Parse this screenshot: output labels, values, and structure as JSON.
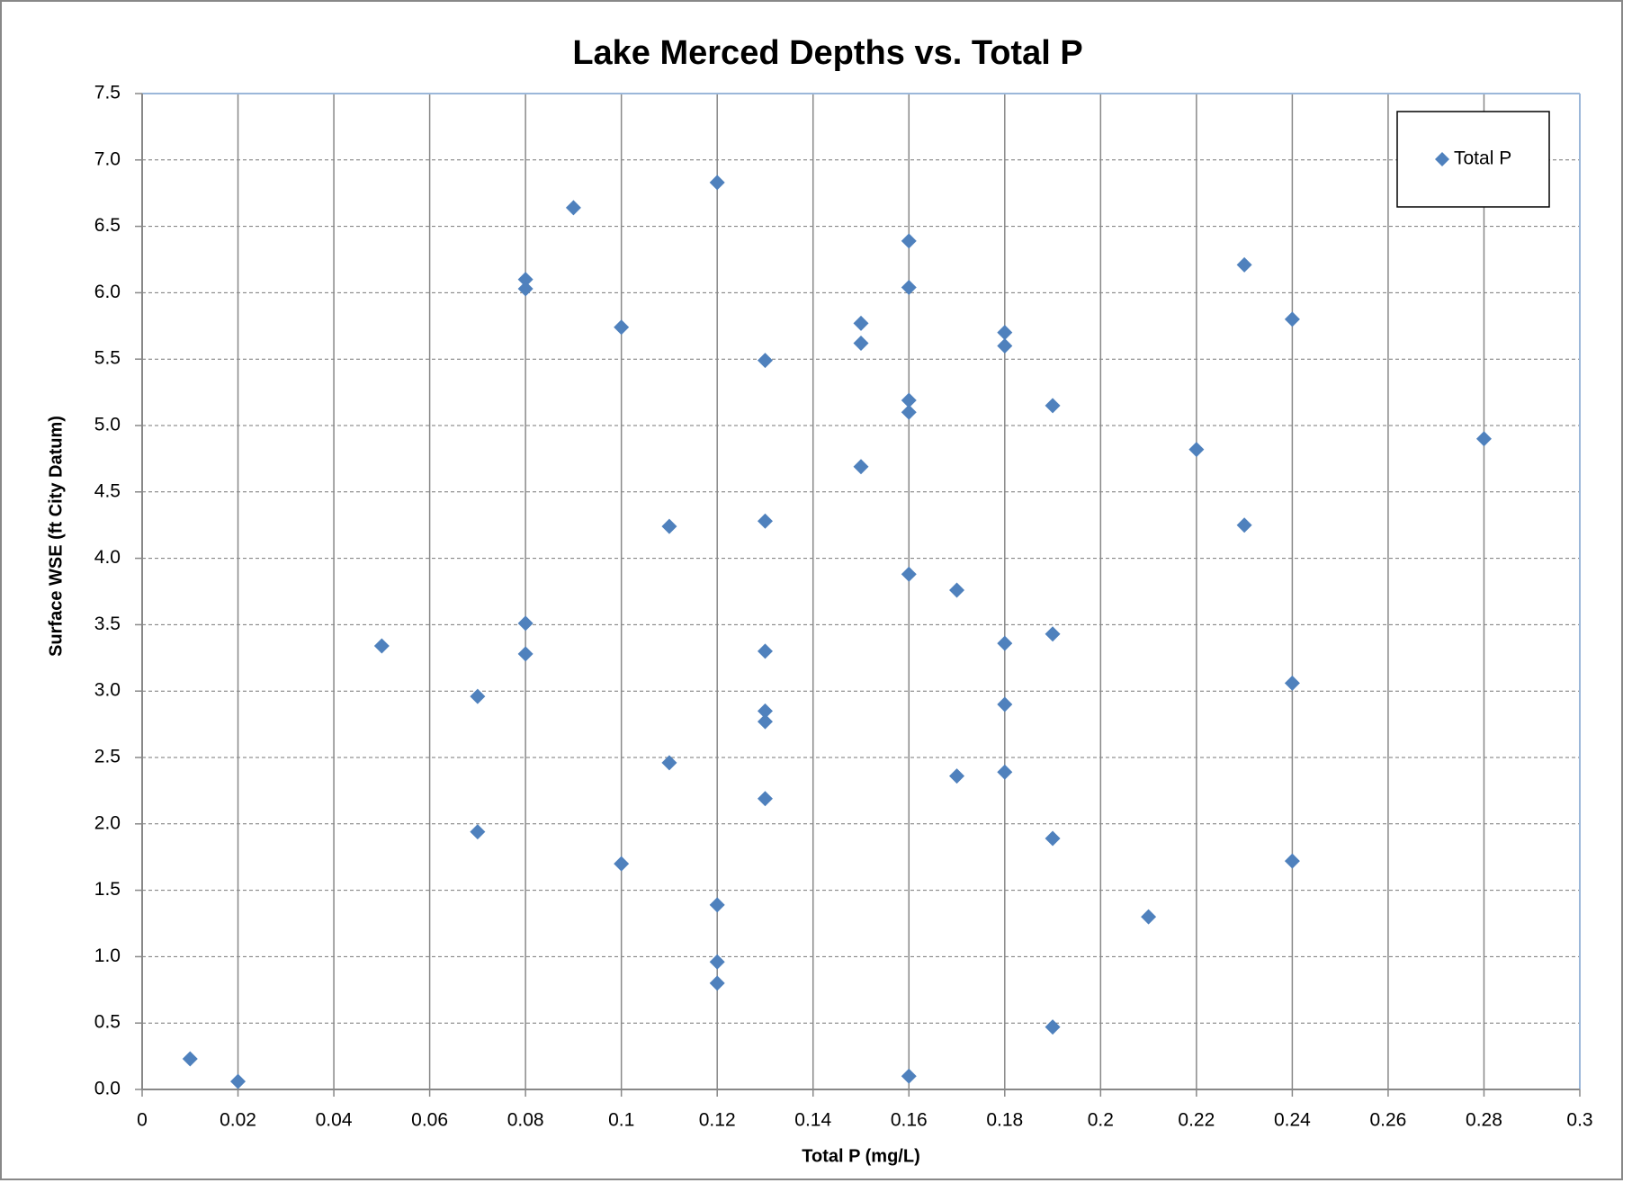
{
  "chart_data": {
    "type": "scatter",
    "title": "Lake Merced Depths vs. Total P",
    "xlabel": "Total P (mg/L)",
    "ylabel": "Surface WSE (ft City Datum)",
    "x": [
      0.01,
      0.02,
      0.05,
      0.07,
      0.07,
      0.08,
      0.08,
      0.08,
      0.08,
      0.09,
      0.1,
      0.1,
      0.11,
      0.11,
      0.12,
      0.12,
      0.12,
      0.12,
      0.13,
      0.13,
      0.13,
      0.13,
      0.13,
      0.13,
      0.15,
      0.15,
      0.15,
      0.16,
      0.16,
      0.16,
      0.16,
      0.16,
      0.16,
      0.17,
      0.17,
      0.18,
      0.18,
      0.18,
      0.18,
      0.18,
      0.19,
      0.19,
      0.19,
      0.19,
      0.21,
      0.22,
      0.23,
      0.23,
      0.24,
      0.24,
      0.24,
      0.28
    ],
    "series": [
      {
        "name": "Total P",
        "color": "#4f81bd",
        "values": [
          0.23,
          0.06,
          3.34,
          2.96,
          1.94,
          6.1,
          6.03,
          3.51,
          3.28,
          6.64,
          5.74,
          1.7,
          4.24,
          2.46,
          6.83,
          1.39,
          0.96,
          0.8,
          5.49,
          4.28,
          3.3,
          2.85,
          2.77,
          2.19,
          5.77,
          5.62,
          4.69,
          6.39,
          6.04,
          5.19,
          5.1,
          3.88,
          0.1,
          3.76,
          2.36,
          5.7,
          5.6,
          3.36,
          2.9,
          2.39,
          5.15,
          3.43,
          1.89,
          0.47,
          1.3,
          4.82,
          6.21,
          4.25,
          5.8,
          3.06,
          1.72,
          4.9
        ]
      }
    ],
    "xlim": [
      0,
      0.3
    ],
    "ylim": [
      0,
      7.5
    ],
    "xticks": [
      0,
      0.02,
      0.04,
      0.06,
      0.08,
      0.1,
      0.12,
      0.14,
      0.16,
      0.18,
      0.2,
      0.22,
      0.24,
      0.26,
      0.28,
      0.3
    ],
    "yticks": [
      {
        "value": 0,
        "label": "0.0"
      },
      0.5,
      {
        "value": 1,
        "label": "1.0"
      },
      1.5,
      {
        "value": 2,
        "label": "2.0"
      },
      2.5,
      {
        "value": 3,
        "label": "3.0"
      },
      3.5,
      {
        "value": 4,
        "label": "4.0"
      },
      4.5,
      {
        "value": 5,
        "label": "5.0"
      },
      5.5,
      {
        "value": 6,
        "label": "6.0"
      },
      6.5,
      {
        "value": 7,
        "label": "7.0"
      },
      7.5
    ],
    "grid": true,
    "legend": "upper right"
  }
}
